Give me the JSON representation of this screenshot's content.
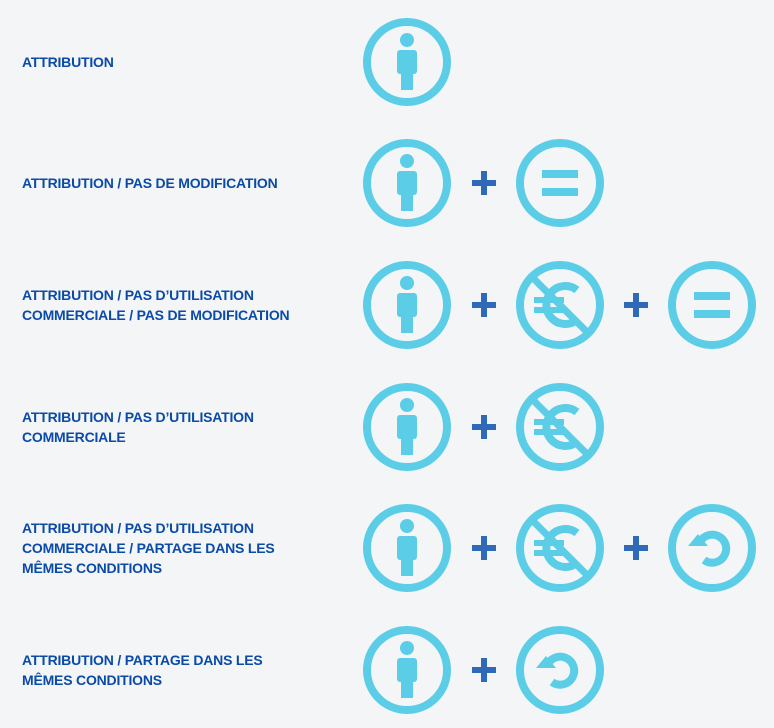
{
  "colors": {
    "icon": "#5bcde7",
    "plus": "#2f6ab8",
    "label": "#0a4aa8",
    "background": "#f4f5f6"
  },
  "rows": [
    {
      "label": "ATTRIBUTION",
      "icons": [
        "attribution-icon"
      ]
    },
    {
      "label": "ATTRIBUTION / PAS DE MODIFICATION",
      "icons": [
        "attribution-icon",
        "no-derivatives-icon"
      ]
    },
    {
      "label": "ATTRIBUTION / PAS D’UTILISATION\nCOMMERCIALE / PAS DE MODIFICATION",
      "icons": [
        "attribution-icon",
        "non-commercial-icon",
        "no-derivatives-icon"
      ]
    },
    {
      "label": "ATTRIBUTION / PAS D’UTILISATION\nCOMMERCIALE",
      "icons": [
        "attribution-icon",
        "non-commercial-icon"
      ]
    },
    {
      "label": "ATTRIBUTION / PAS D’UTILISATION\nCOMMERCIALE / PARTAGE DANS LES\nMÊMES CONDITIONS",
      "icons": [
        "attribution-icon",
        "non-commercial-icon",
        "share-alike-icon"
      ]
    },
    {
      "label": "ATTRIBUTION / PARTAGE DANS LES\nMÊMES CONDITIONS",
      "icons": [
        "attribution-icon",
        "share-alike-icon"
      ]
    }
  ]
}
